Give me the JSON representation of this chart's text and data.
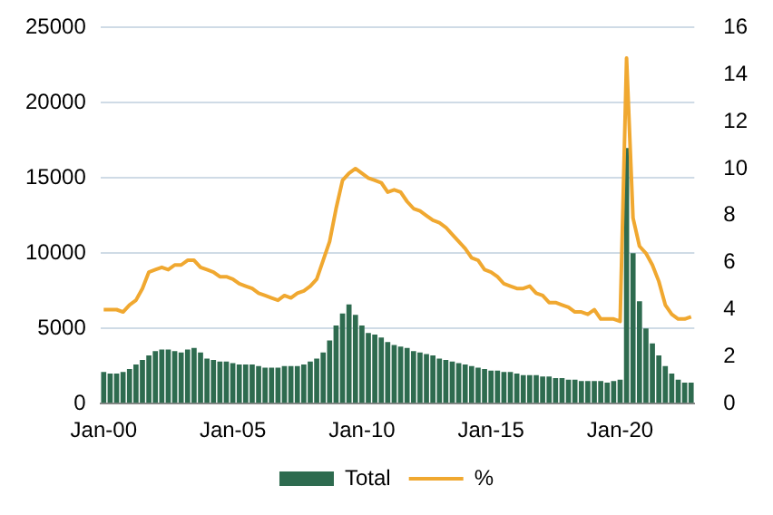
{
  "chart_data": {
    "type": "bar",
    "categories": [
      "Jan-00",
      null,
      null,
      null,
      null,
      null,
      null,
      null,
      null,
      null,
      null,
      null,
      null,
      null,
      null,
      null,
      null,
      null,
      null,
      null,
      "Jan-05",
      null,
      null,
      null,
      null,
      null,
      null,
      null,
      null,
      null,
      null,
      null,
      null,
      null,
      null,
      null,
      null,
      null,
      null,
      null,
      "Jan-10",
      null,
      null,
      null,
      null,
      null,
      null,
      null,
      null,
      null,
      null,
      null,
      null,
      null,
      null,
      null,
      null,
      null,
      null,
      null,
      "Jan-15",
      null,
      null,
      null,
      null,
      null,
      null,
      null,
      null,
      null,
      null,
      null,
      null,
      null,
      null,
      null,
      null,
      null,
      null,
      null,
      "Jan-20",
      null,
      null,
      null,
      null,
      null,
      null,
      null,
      null,
      null,
      null,
      null
    ],
    "series": [
      {
        "name": "Total",
        "color": "#2e6b4f",
        "values": [
          2100,
          2000,
          2000,
          2100,
          2300,
          2600,
          2900,
          3200,
          3500,
          3600,
          3600,
          3500,
          3400,
          3600,
          3700,
          3400,
          3000,
          2900,
          2800,
          2800,
          2700,
          2600,
          2600,
          2600,
          2500,
          2400,
          2400,
          2400,
          2500,
          2500,
          2500,
          2600,
          2800,
          3000,
          3400,
          4200,
          5200,
          6000,
          6600,
          5900,
          5200,
          4700,
          4600,
          4400,
          4100,
          3900,
          3800,
          3700,
          3500,
          3400,
          3300,
          3200,
          3000,
          2900,
          2800,
          2700,
          2600,
          2500,
          2400,
          2300,
          2200,
          2200,
          2100,
          2100,
          2000,
          1900,
          1900,
          1900,
          1800,
          1800,
          1700,
          1700,
          1600,
          1600,
          1500,
          1500,
          1500,
          1500,
          1400,
          1500,
          1600,
          17000,
          10000,
          6800,
          5000,
          4000,
          3200,
          2500,
          2000,
          1600,
          1400,
          1400
        ]
      },
      {
        "name": "%",
        "type": "line",
        "axis": "y2",
        "color": "#f0a830",
        "values": [
          4.0,
          4.0,
          4.0,
          3.9,
          4.2,
          4.4,
          4.9,
          5.6,
          5.7,
          5.8,
          5.7,
          5.9,
          5.9,
          6.1,
          6.1,
          5.8,
          5.7,
          5.6,
          5.4,
          5.4,
          5.3,
          5.1,
          5.0,
          4.9,
          4.7,
          4.6,
          4.5,
          4.4,
          4.6,
          4.5,
          4.7,
          4.8,
          5.0,
          5.3,
          6.1,
          6.9,
          8.3,
          9.5,
          9.8,
          10.0,
          9.8,
          9.6,
          9.5,
          9.4,
          9.0,
          9.1,
          9.0,
          8.6,
          8.3,
          8.2,
          8.0,
          7.8,
          7.7,
          7.5,
          7.2,
          6.9,
          6.6,
          6.2,
          6.1,
          5.7,
          5.6,
          5.4,
          5.1,
          5.0,
          4.9,
          4.9,
          5.0,
          4.7,
          4.6,
          4.3,
          4.3,
          4.2,
          4.1,
          3.9,
          3.9,
          3.8,
          4.0,
          3.6,
          3.6,
          3.6,
          3.5,
          14.7,
          7.9,
          6.7,
          6.4,
          5.9,
          5.2,
          4.2,
          3.8,
          3.6,
          3.6,
          3.7
        ]
      }
    ],
    "ylim": [
      0,
      25000
    ],
    "yticks": [
      0,
      5000,
      10000,
      15000,
      20000,
      25000
    ],
    "y2lim": [
      0,
      16
    ],
    "y2ticks": [
      0,
      2,
      4,
      6,
      8,
      10,
      12,
      14,
      16
    ],
    "grid": "y",
    "legend": "bottom",
    "marker": "none",
    "line_style": "solid"
  }
}
